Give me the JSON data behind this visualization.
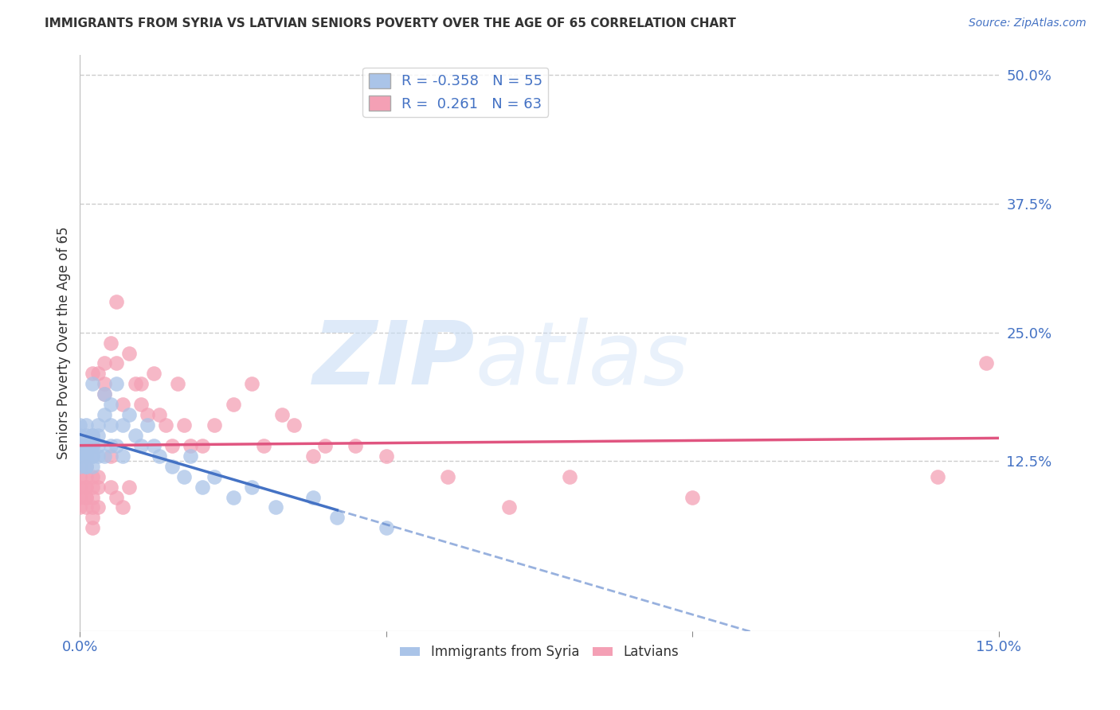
{
  "title": "IMMIGRANTS FROM SYRIA VS LATVIAN SENIORS POVERTY OVER THE AGE OF 65 CORRELATION CHART",
  "source": "Source: ZipAtlas.com",
  "ylabel": "Seniors Poverty Over the Age of 65",
  "xlim": [
    0.0,
    0.15
  ],
  "ylim": [
    -0.04,
    0.52
  ],
  "ytick_labels": [
    "50.0%",
    "37.5%",
    "25.0%",
    "12.5%"
  ],
  "ytick_values": [
    0.5,
    0.375,
    0.25,
    0.125
  ],
  "syria_color": "#aac4e8",
  "latvian_color": "#f4a0b5",
  "syria_line_color": "#4472c4",
  "latvian_line_color": "#e05580",
  "legend_syria_R": "-0.358",
  "legend_syria_N": "55",
  "legend_latvian_R": "0.261",
  "legend_latvian_N": "63",
  "watermark_zip": "ZIP",
  "watermark_atlas": "atlas",
  "background_color": "#ffffff",
  "grid_color": "#cccccc",
  "syria_x": [
    0.0,
    0.0,
    0.0,
    0.0,
    0.0,
    0.001,
    0.001,
    0.001,
    0.001,
    0.001,
    0.001,
    0.001,
    0.001,
    0.001,
    0.001,
    0.002,
    0.002,
    0.002,
    0.002,
    0.002,
    0.002,
    0.002,
    0.002,
    0.002,
    0.003,
    0.003,
    0.003,
    0.003,
    0.004,
    0.004,
    0.004,
    0.005,
    0.005,
    0.005,
    0.006,
    0.006,
    0.007,
    0.007,
    0.008,
    0.009,
    0.01,
    0.011,
    0.012,
    0.013,
    0.015,
    0.017,
    0.018,
    0.02,
    0.022,
    0.025,
    0.028,
    0.032,
    0.038,
    0.042,
    0.05
  ],
  "syria_y": [
    0.14,
    0.13,
    0.12,
    0.15,
    0.16,
    0.14,
    0.13,
    0.15,
    0.12,
    0.14,
    0.13,
    0.12,
    0.14,
    0.13,
    0.16,
    0.14,
    0.15,
    0.13,
    0.12,
    0.14,
    0.13,
    0.15,
    0.14,
    0.2,
    0.15,
    0.13,
    0.14,
    0.16,
    0.19,
    0.13,
    0.17,
    0.18,
    0.14,
    0.16,
    0.2,
    0.14,
    0.16,
    0.13,
    0.17,
    0.15,
    0.14,
    0.16,
    0.14,
    0.13,
    0.12,
    0.11,
    0.13,
    0.1,
    0.11,
    0.09,
    0.1,
    0.08,
    0.09,
    0.07,
    0.06
  ],
  "latvian_x": [
    0.0,
    0.0,
    0.0,
    0.0,
    0.001,
    0.001,
    0.001,
    0.001,
    0.001,
    0.001,
    0.001,
    0.002,
    0.002,
    0.002,
    0.002,
    0.002,
    0.002,
    0.002,
    0.003,
    0.003,
    0.003,
    0.003,
    0.004,
    0.004,
    0.004,
    0.005,
    0.005,
    0.005,
    0.006,
    0.006,
    0.006,
    0.007,
    0.007,
    0.008,
    0.008,
    0.009,
    0.01,
    0.01,
    0.011,
    0.012,
    0.013,
    0.014,
    0.015,
    0.016,
    0.017,
    0.018,
    0.02,
    0.022,
    0.025,
    0.028,
    0.03,
    0.033,
    0.035,
    0.038,
    0.04,
    0.045,
    0.05,
    0.06,
    0.07,
    0.08,
    0.1,
    0.14,
    0.148
  ],
  "latvian_y": [
    0.1,
    0.09,
    0.11,
    0.08,
    0.11,
    0.1,
    0.09,
    0.12,
    0.1,
    0.09,
    0.08,
    0.21,
    0.11,
    0.1,
    0.08,
    0.09,
    0.07,
    0.06,
    0.21,
    0.11,
    0.1,
    0.08,
    0.2,
    0.22,
    0.19,
    0.24,
    0.13,
    0.1,
    0.22,
    0.09,
    0.28,
    0.18,
    0.08,
    0.1,
    0.23,
    0.2,
    0.2,
    0.18,
    0.17,
    0.21,
    0.17,
    0.16,
    0.14,
    0.2,
    0.16,
    0.14,
    0.14,
    0.16,
    0.18,
    0.2,
    0.14,
    0.17,
    0.16,
    0.13,
    0.14,
    0.14,
    0.13,
    0.11,
    0.08,
    0.11,
    0.09,
    0.11,
    0.22
  ]
}
